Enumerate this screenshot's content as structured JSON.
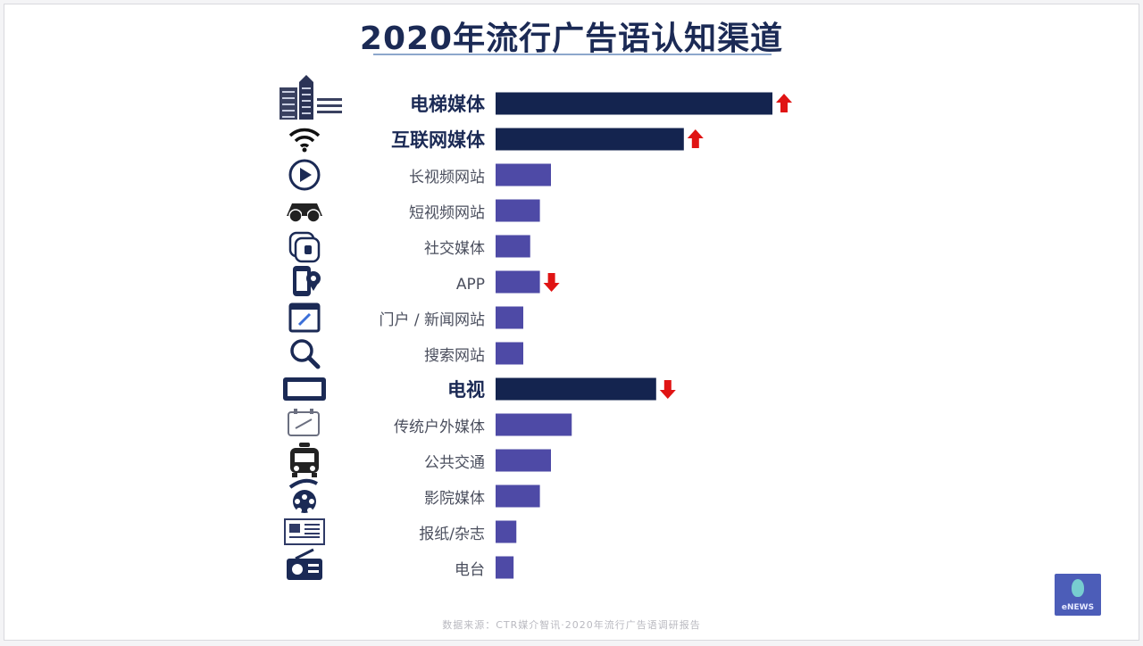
{
  "chart_data": {
    "type": "bar",
    "orientation": "horizontal",
    "title": "2020年流行广告语认知渠道",
    "categories": [
      {
        "label": "电梯媒体",
        "value": 100,
        "highlight": true,
        "trend": "up",
        "icon": "building-icon"
      },
      {
        "label": "互联网媒体",
        "value": 68,
        "highlight": true,
        "trend": "up",
        "icon": "wifi-icon"
      },
      {
        "label": "长视频网站",
        "value": 20,
        "highlight": false,
        "trend": "",
        "icon": "play-circle-icon"
      },
      {
        "label": "短视频网站",
        "value": 16,
        "highlight": false,
        "trend": "",
        "icon": "vr-glasses-icon"
      },
      {
        "label": "社交媒体",
        "value": 12.5,
        "highlight": false,
        "trend": "",
        "icon": "social-app-icon"
      },
      {
        "label": "APP",
        "value": 16,
        "highlight": false,
        "trend": "down",
        "icon": "mobile-app-icon"
      },
      {
        "label": "门户 / 新闻网站",
        "value": 10,
        "highlight": false,
        "trend": "",
        "icon": "browser-news-icon"
      },
      {
        "label": "搜索网站",
        "value": 10,
        "highlight": false,
        "trend": "",
        "icon": "search-icon"
      },
      {
        "label": "电视",
        "value": 58,
        "highlight": true,
        "trend": "down",
        "icon": "tv-icon"
      },
      {
        "label": "传统户外媒体",
        "value": 27.5,
        "highlight": false,
        "trend": "",
        "icon": "billboard-icon"
      },
      {
        "label": "公共交通",
        "value": 20,
        "highlight": false,
        "trend": "",
        "icon": "bus-icon"
      },
      {
        "label": "影院媒体",
        "value": 16,
        "highlight": false,
        "trend": "",
        "icon": "film-reel-icon"
      },
      {
        "label": "报纸/杂志",
        "value": 7.5,
        "highlight": false,
        "trend": "",
        "icon": "newspaper-icon"
      },
      {
        "label": "电台",
        "value": 6.5,
        "highlight": false,
        "trend": "",
        "icon": "radio-icon"
      }
    ],
    "xlim": [
      0,
      100
    ],
    "grid": false,
    "legend": "none",
    "colors": {
      "highlight_bar": "#14244f",
      "normal_bar": "#4e4aa6",
      "highlight_label": "#1b2a55",
      "normal_label": "#4b4f5e",
      "trend_arrow": "#e01414"
    }
  },
  "footer": "数据来源：CTR媒介智讯·2020年流行广告语调研报告",
  "logo_text": "eNEWS"
}
